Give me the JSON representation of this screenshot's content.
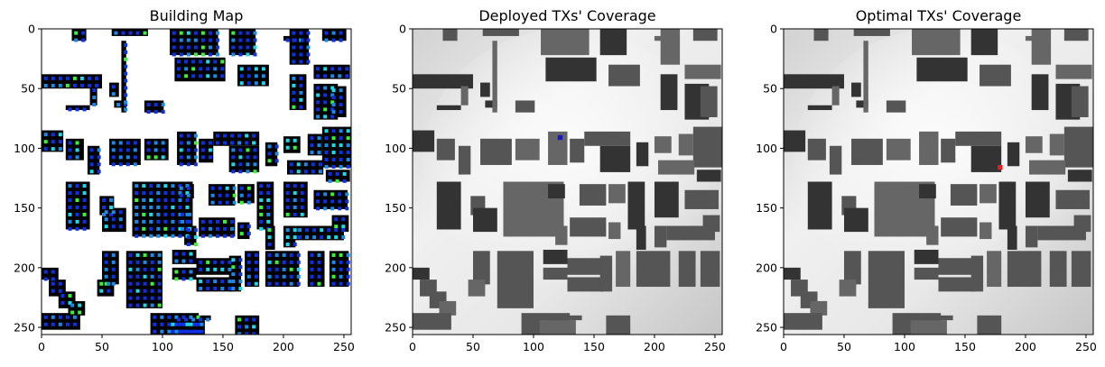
{
  "figure": {
    "panels": [
      {
        "title": "Building Map"
      },
      {
        "title": "Deployed TXs' Coverage"
      },
      {
        "title": "Optimal TXs' Coverage"
      }
    ]
  },
  "chart_data": [
    {
      "type": "heatmap",
      "title": "Building Map",
      "xlim": [
        0,
        256
      ],
      "ylim": [
        256,
        0
      ],
      "x_ticks": [
        0,
        50,
        100,
        150,
        200,
        250
      ],
      "y_ticks": [
        0,
        50,
        100,
        150,
        200,
        250
      ],
      "grid": false,
      "colors": {
        "background": "#ffffff",
        "building": "#000000",
        "marker_dark": "#1030e0",
        "marker_mid": "#1e88e5",
        "marker_cyan": "#20d8e8",
        "marker_green": "#3cf03c"
      }
    },
    {
      "type": "heatmap",
      "title": "Deployed TXs' Coverage",
      "xlim": [
        0,
        256
      ],
      "ylim": [
        256,
        0
      ],
      "x_ticks": [
        0,
        50,
        100,
        150,
        200,
        250
      ],
      "y_ticks": [
        0,
        50,
        100,
        150,
        200,
        250
      ],
      "grid": false,
      "transmitters": [
        {
          "x": 122,
          "y": 91,
          "color": "#1a1ab0"
        }
      ],
      "colors": {
        "background": "#e6e6e6",
        "building": "#555555"
      }
    },
    {
      "type": "heatmap",
      "title": "Optimal TXs' Coverage",
      "xlim": [
        0,
        256
      ],
      "ylim": [
        256,
        0
      ],
      "x_ticks": [
        0,
        50,
        100,
        150,
        200,
        250
      ],
      "y_ticks": [
        0,
        50,
        100,
        150,
        200,
        250
      ],
      "grid": false,
      "transmitters": [
        {
          "x": 179,
          "y": 116,
          "color": "#e81c1c"
        }
      ],
      "colors": {
        "background": "#e6e6e6",
        "building": "#555555"
      }
    }
  ]
}
